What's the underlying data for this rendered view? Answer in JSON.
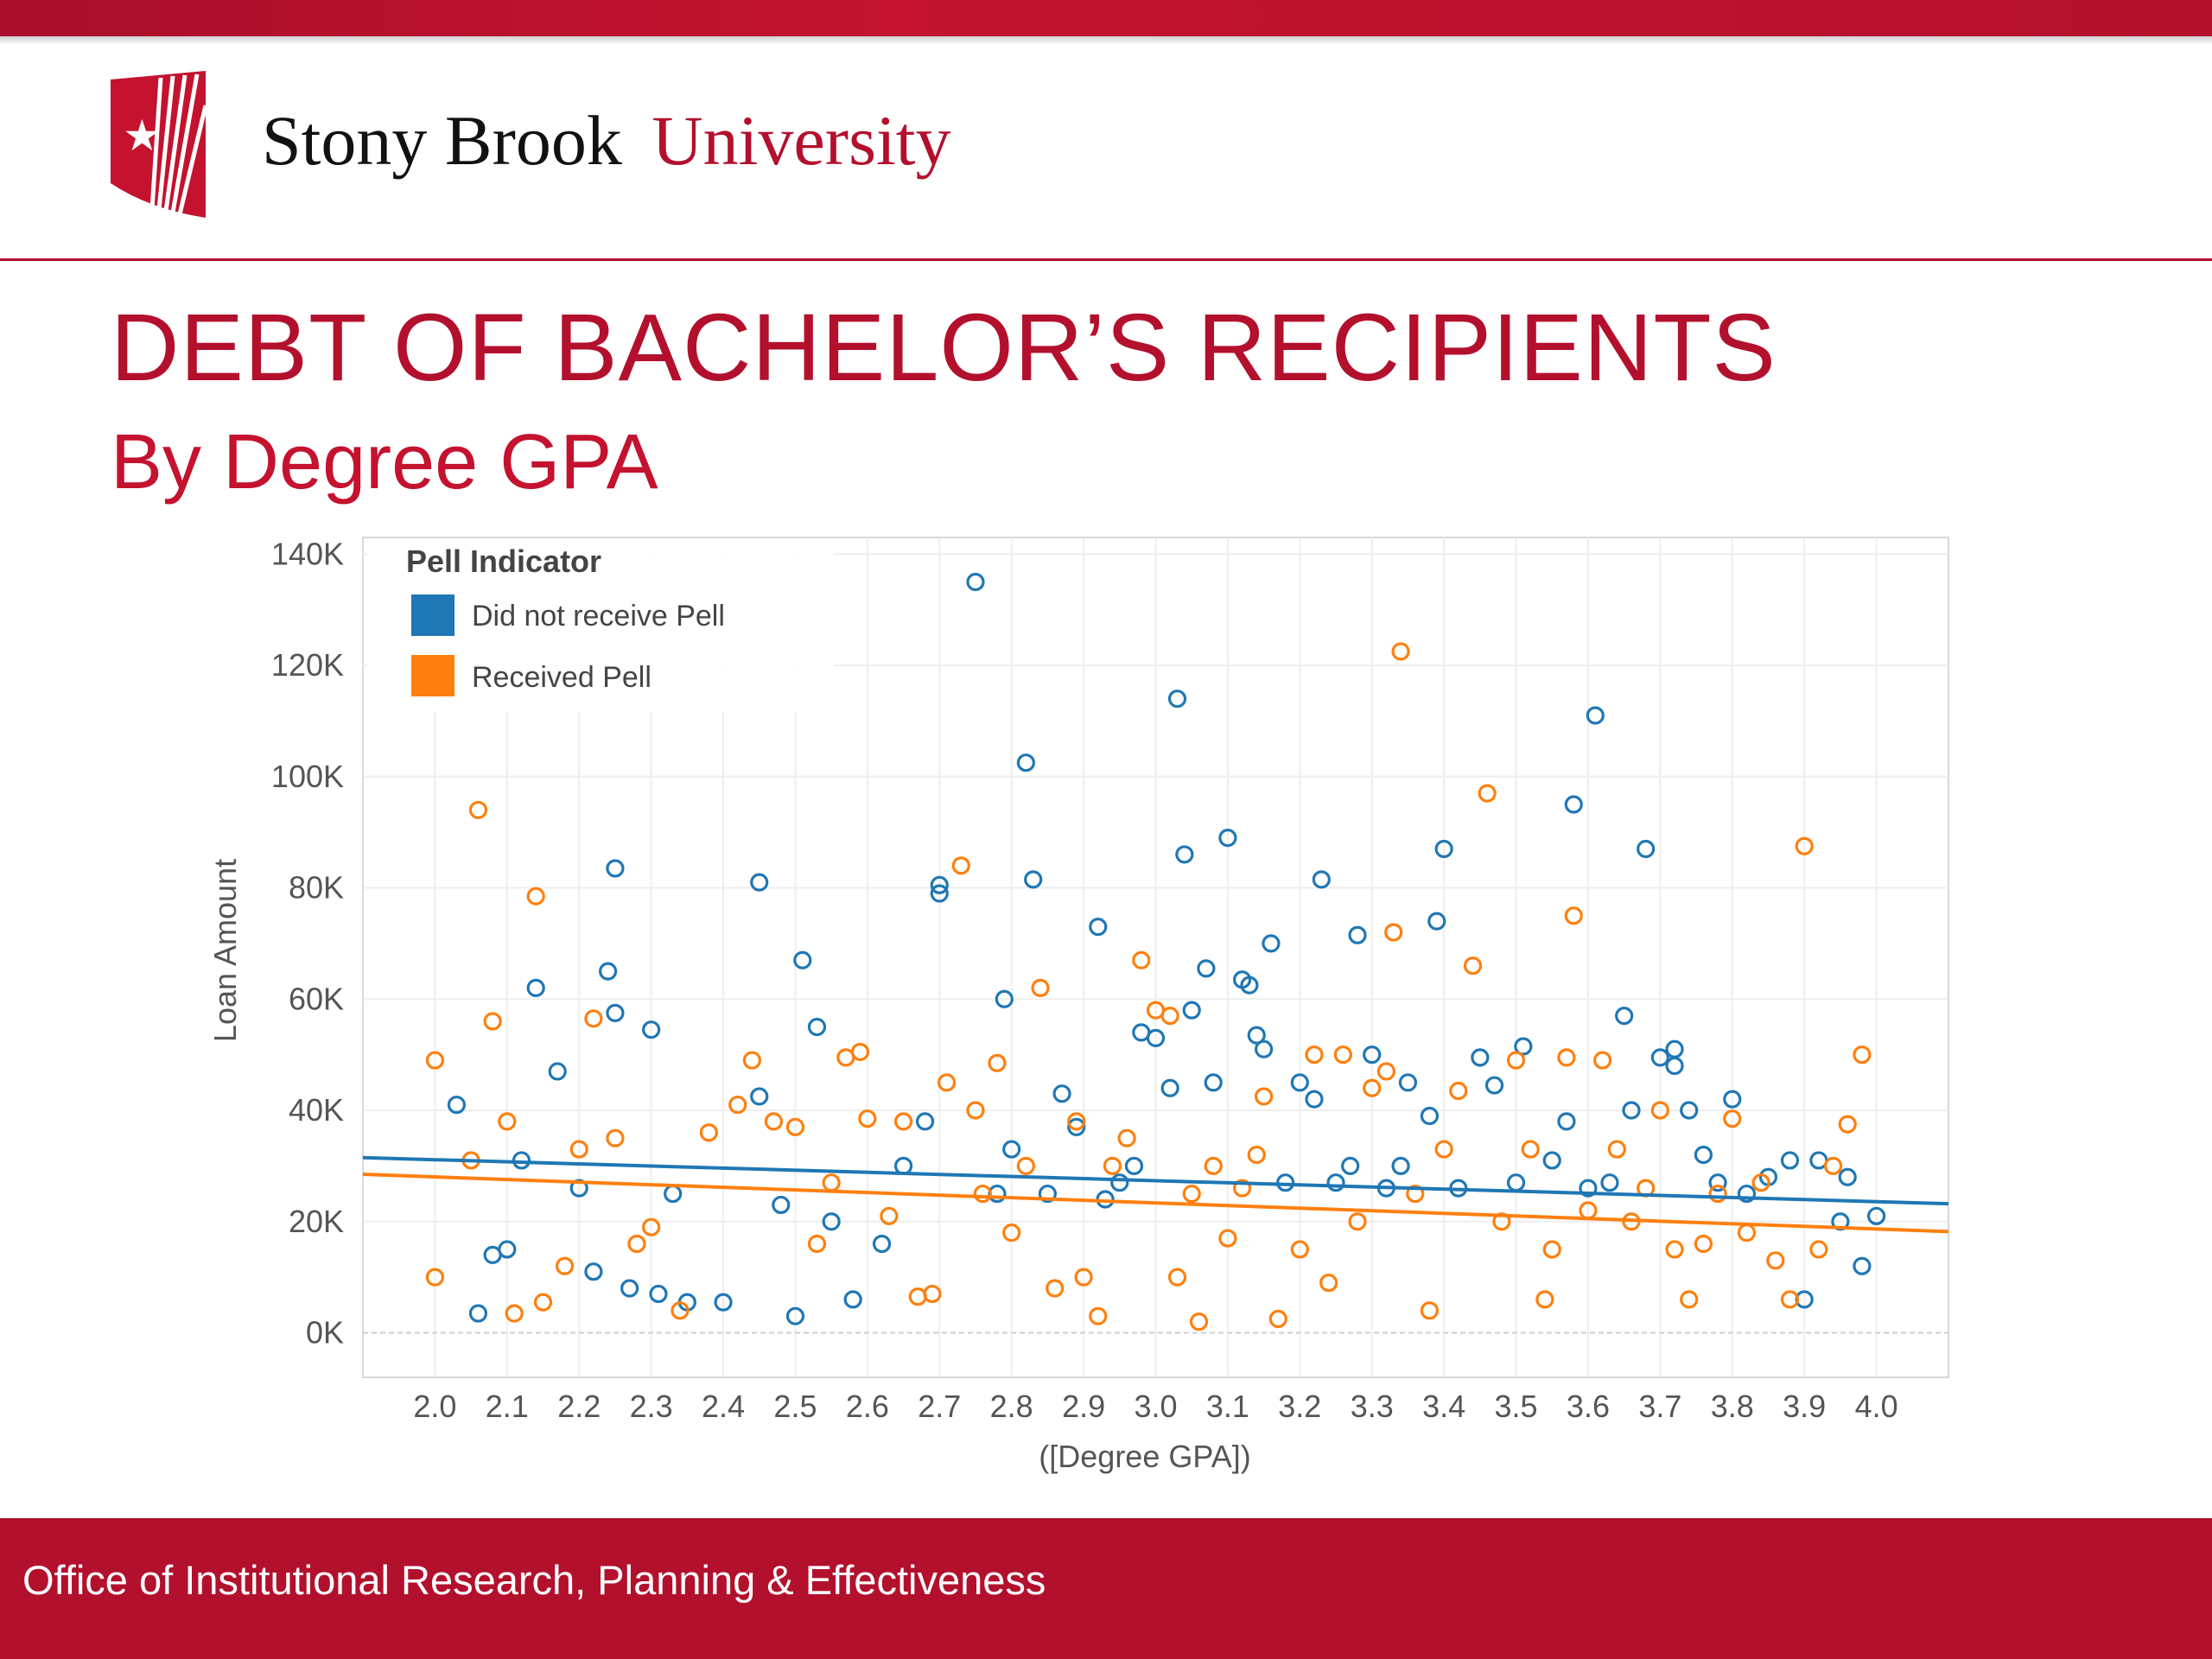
{
  "header": {
    "university_name_part1": "Stony Brook",
    "university_name_part2": "University"
  },
  "colors": {
    "brand_red": "#b3102d",
    "blue_series": "#1f77b4",
    "orange_series": "#ff7f0e"
  },
  "slide": {
    "title": "DEBT OF BACHELOR’S RECIPIENTS",
    "subtitle": "By Degree GPA"
  },
  "footer": {
    "text": "Office of Institutional Research, Planning & Effectiveness"
  },
  "chart_data": {
    "type": "scatter",
    "xlabel": "([Degree GPA])",
    "ylabel": "Loan Amount",
    "xlim": [
      1.9,
      4.1
    ],
    "ylim": [
      -8000,
      143000
    ],
    "x_ticks": [
      "2.0",
      "2.1",
      "2.2",
      "2.3",
      "2.4",
      "2.5",
      "2.6",
      "2.7",
      "2.8",
      "2.9",
      "3.0",
      "3.1",
      "3.2",
      "3.3",
      "3.4",
      "3.5",
      "3.6",
      "3.7",
      "3.8",
      "3.9",
      "4.0"
    ],
    "y_ticks": [
      {
        "value": 0,
        "label": "0K"
      },
      {
        "value": 20000,
        "label": "20K"
      },
      {
        "value": 40000,
        "label": "40K"
      },
      {
        "value": 60000,
        "label": "60K"
      },
      {
        "value": 80000,
        "label": "80K"
      },
      {
        "value": 100000,
        "label": "100K"
      },
      {
        "value": 120000,
        "label": "120K"
      },
      {
        "value": 140000,
        "label": "140K"
      }
    ],
    "grid": true,
    "legend": {
      "title": "Pell Indicator",
      "position": "top-left",
      "entries": [
        "Did not receive Pell",
        "Received Pell"
      ]
    },
    "series": [
      {
        "name": "Did not receive Pell",
        "color": "#1f77b4",
        "trend": [
          [
            1.9,
            31500
          ],
          [
            4.1,
            23200
          ]
        ],
        "points": [
          [
            2.03,
            41000
          ],
          [
            2.06,
            3500
          ],
          [
            2.08,
            14000
          ],
          [
            2.1,
            15000
          ],
          [
            2.12,
            31000
          ],
          [
            2.14,
            62000
          ],
          [
            2.17,
            47000
          ],
          [
            2.2,
            26000
          ],
          [
            2.22,
            11000
          ],
          [
            2.24,
            65000
          ],
          [
            2.25,
            57500
          ],
          [
            2.25,
            83500
          ],
          [
            2.27,
            8000
          ],
          [
            2.3,
            54500
          ],
          [
            2.31,
            7000
          ],
          [
            2.33,
            25000
          ],
          [
            2.35,
            5500
          ],
          [
            2.4,
            5500
          ],
          [
            2.45,
            42500
          ],
          [
            2.45,
            81000
          ],
          [
            2.48,
            23000
          ],
          [
            2.5,
            3000
          ],
          [
            2.51,
            67000
          ],
          [
            2.53,
            55000
          ],
          [
            2.55,
            20000
          ],
          [
            2.58,
            6000
          ],
          [
            2.62,
            16000
          ],
          [
            2.65,
            30000
          ],
          [
            2.68,
            38000
          ],
          [
            2.7,
            80500
          ],
          [
            2.7,
            79000
          ],
          [
            2.75,
            135000
          ],
          [
            2.78,
            25000
          ],
          [
            2.79,
            60000
          ],
          [
            2.8,
            33000
          ],
          [
            2.82,
            102500
          ],
          [
            2.83,
            81500
          ],
          [
            2.85,
            25000
          ],
          [
            2.87,
            43000
          ],
          [
            2.89,
            37000
          ],
          [
            2.92,
            73000
          ],
          [
            2.93,
            24000
          ],
          [
            2.95,
            27000
          ],
          [
            2.97,
            30000
          ],
          [
            2.98,
            54000
          ],
          [
            3.0,
            53000
          ],
          [
            3.02,
            44000
          ],
          [
            3.03,
            114000
          ],
          [
            3.04,
            86000
          ],
          [
            3.05,
            58000
          ],
          [
            3.07,
            65500
          ],
          [
            3.08,
            45000
          ],
          [
            3.1,
            89000
          ],
          [
            3.12,
            63500
          ],
          [
            3.13,
            62500
          ],
          [
            3.14,
            53500
          ],
          [
            3.15,
            51000
          ],
          [
            3.16,
            70000
          ],
          [
            3.18,
            27000
          ],
          [
            3.2,
            45000
          ],
          [
            3.22,
            42000
          ],
          [
            3.23,
            81500
          ],
          [
            3.25,
            27000
          ],
          [
            3.27,
            30000
          ],
          [
            3.28,
            71500
          ],
          [
            3.3,
            50000
          ],
          [
            3.32,
            26000
          ],
          [
            3.34,
            30000
          ],
          [
            3.35,
            45000
          ],
          [
            3.38,
            39000
          ],
          [
            3.4,
            87000
          ],
          [
            3.39,
            74000
          ],
          [
            3.42,
            26000
          ],
          [
            3.45,
            49500
          ],
          [
            3.47,
            44500
          ],
          [
            3.5,
            27000
          ],
          [
            3.51,
            51500
          ],
          [
            3.55,
            31000
          ],
          [
            3.57,
            38000
          ],
          [
            3.58,
            95000
          ],
          [
            3.6,
            26000
          ],
          [
            3.61,
            111000
          ],
          [
            3.63,
            27000
          ],
          [
            3.65,
            57000
          ],
          [
            3.66,
            40000
          ],
          [
            3.68,
            87000
          ],
          [
            3.7,
            49500
          ],
          [
            3.72,
            51000
          ],
          [
            3.72,
            48000
          ],
          [
            3.74,
            40000
          ],
          [
            3.76,
            32000
          ],
          [
            3.78,
            27000
          ],
          [
            3.8,
            42000
          ],
          [
            3.82,
            25000
          ],
          [
            3.85,
            28000
          ],
          [
            3.88,
            31000
          ],
          [
            3.9,
            6000
          ],
          [
            3.92,
            31000
          ],
          [
            3.95,
            20000
          ],
          [
            3.96,
            28000
          ],
          [
            3.98,
            12000
          ],
          [
            4.0,
            21000
          ]
        ]
      },
      {
        "name": "Received Pell",
        "color": "#ff7f0e",
        "trend": [
          [
            1.9,
            28500
          ],
          [
            4.1,
            18200
          ]
        ],
        "points": [
          [
            2.0,
            49000
          ],
          [
            2.0,
            10000
          ],
          [
            2.05,
            31000
          ],
          [
            2.06,
            94000
          ],
          [
            2.08,
            56000
          ],
          [
            2.1,
            38000
          ],
          [
            2.11,
            3500
          ],
          [
            2.14,
            78500
          ],
          [
            2.15,
            5500
          ],
          [
            2.18,
            12000
          ],
          [
            2.2,
            33000
          ],
          [
            2.22,
            56500
          ],
          [
            2.25,
            35000
          ],
          [
            2.28,
            16000
          ],
          [
            2.3,
            19000
          ],
          [
            2.34,
            4000
          ],
          [
            2.38,
            36000
          ],
          [
            2.42,
            41000
          ],
          [
            2.44,
            49000
          ],
          [
            2.47,
            38000
          ],
          [
            2.5,
            37000
          ],
          [
            2.53,
            16000
          ],
          [
            2.55,
            27000
          ],
          [
            2.57,
            49500
          ],
          [
            2.59,
            50500
          ],
          [
            2.6,
            38500
          ],
          [
            2.63,
            21000
          ],
          [
            2.65,
            38000
          ],
          [
            2.67,
            6500
          ],
          [
            2.69,
            7000
          ],
          [
            2.71,
            45000
          ],
          [
            2.73,
            84000
          ],
          [
            2.75,
            40000
          ],
          [
            2.76,
            25000
          ],
          [
            2.78,
            48500
          ],
          [
            2.8,
            18000
          ],
          [
            2.82,
            30000
          ],
          [
            2.84,
            62000
          ],
          [
            2.86,
            8000
          ],
          [
            2.89,
            38000
          ],
          [
            2.9,
            10000
          ],
          [
            2.92,
            3000
          ],
          [
            2.94,
            30000
          ],
          [
            2.96,
            35000
          ],
          [
            2.98,
            67000
          ],
          [
            3.0,
            58000
          ],
          [
            3.02,
            57000
          ],
          [
            3.03,
            10000
          ],
          [
            3.05,
            25000
          ],
          [
            3.06,
            2000
          ],
          [
            3.08,
            30000
          ],
          [
            3.1,
            17000
          ],
          [
            3.12,
            26000
          ],
          [
            3.14,
            32000
          ],
          [
            3.15,
            42500
          ],
          [
            3.17,
            2500
          ],
          [
            3.2,
            15000
          ],
          [
            3.22,
            50000
          ],
          [
            3.24,
            9000
          ],
          [
            3.26,
            50000
          ],
          [
            3.28,
            20000
          ],
          [
            3.3,
            44000
          ],
          [
            3.32,
            47000
          ],
          [
            3.33,
            72000
          ],
          [
            3.34,
            122500
          ],
          [
            3.36,
            25000
          ],
          [
            3.38,
            4000
          ],
          [
            3.4,
            33000
          ],
          [
            3.42,
            43500
          ],
          [
            3.44,
            66000
          ],
          [
            3.46,
            97000
          ],
          [
            3.48,
            20000
          ],
          [
            3.5,
            49000
          ],
          [
            3.52,
            33000
          ],
          [
            3.54,
            6000
          ],
          [
            3.55,
            15000
          ],
          [
            3.57,
            49500
          ],
          [
            3.58,
            75000
          ],
          [
            3.6,
            22000
          ],
          [
            3.62,
            49000
          ],
          [
            3.64,
            33000
          ],
          [
            3.66,
            20000
          ],
          [
            3.68,
            26000
          ],
          [
            3.7,
            40000
          ],
          [
            3.72,
            15000
          ],
          [
            3.74,
            6000
          ],
          [
            3.76,
            16000
          ],
          [
            3.78,
            25000
          ],
          [
            3.8,
            38500
          ],
          [
            3.82,
            18000
          ],
          [
            3.84,
            27000
          ],
          [
            3.86,
            13000
          ],
          [
            3.88,
            6000
          ],
          [
            3.9,
            87500
          ],
          [
            3.92,
            15000
          ],
          [
            3.94,
            30000
          ],
          [
            3.96,
            37500
          ],
          [
            3.98,
            50000
          ]
        ]
      }
    ]
  }
}
